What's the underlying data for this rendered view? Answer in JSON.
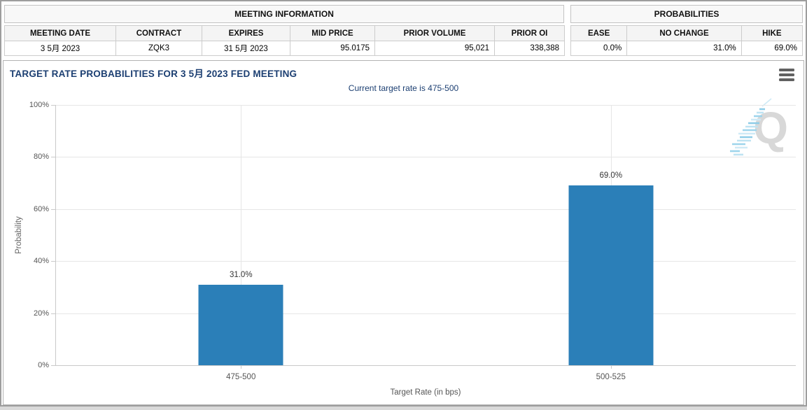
{
  "meeting_information": {
    "title": "MEETING INFORMATION",
    "columns": [
      "MEETING DATE",
      "CONTRACT",
      "EXPIRES",
      "MID PRICE",
      "PRIOR VOLUME",
      "PRIOR OI"
    ],
    "values": [
      "3 5月 2023",
      "ZQK3",
      "31 5月 2023",
      "95.0175",
      "95,021",
      "338,388"
    ]
  },
  "probabilities": {
    "title": "PROBABILITIES",
    "columns": [
      "EASE",
      "NO CHANGE",
      "HIKE"
    ],
    "values": [
      "0.0%",
      "31.0%",
      "69.0%"
    ]
  },
  "chart": {
    "title": "TARGET RATE PROBABILITIES FOR 3 5月 2023 FED MEETING",
    "subtitle": "Current target rate is 475-500",
    "watermark_letter": "Q",
    "menu_icon": "hamburger-menu-icon"
  },
  "chart_data": {
    "type": "bar",
    "categories": [
      "475-500",
      "500-525"
    ],
    "values": [
      31.0,
      69.0
    ],
    "data_labels": [
      "31.0%",
      "69.0%"
    ],
    "title": "TARGET RATE PROBABILITIES FOR 3 5月 2023 FED MEETING",
    "subtitle": "Current target rate is 475-500",
    "xlabel": "Target Rate (in bps)",
    "ylabel": "Probability",
    "ylim": [
      0,
      100
    ],
    "ytick_values": [
      0,
      20,
      40,
      60,
      80,
      100
    ],
    "ytick_labels": [
      "0%",
      "20%",
      "40%",
      "60%",
      "80%",
      "100%"
    ],
    "grid": true,
    "legend": "none",
    "bar_color": "#2b7fb8"
  },
  "colors": {
    "title_navy": "#1c3f72",
    "bar_blue": "#2b7fb8",
    "panel_border": "#c3c3c3",
    "outer_border": "#9d9d9d",
    "gridline": "#e6e6e6",
    "axis_line": "#c9c9c9",
    "axis_text": "#555555"
  }
}
